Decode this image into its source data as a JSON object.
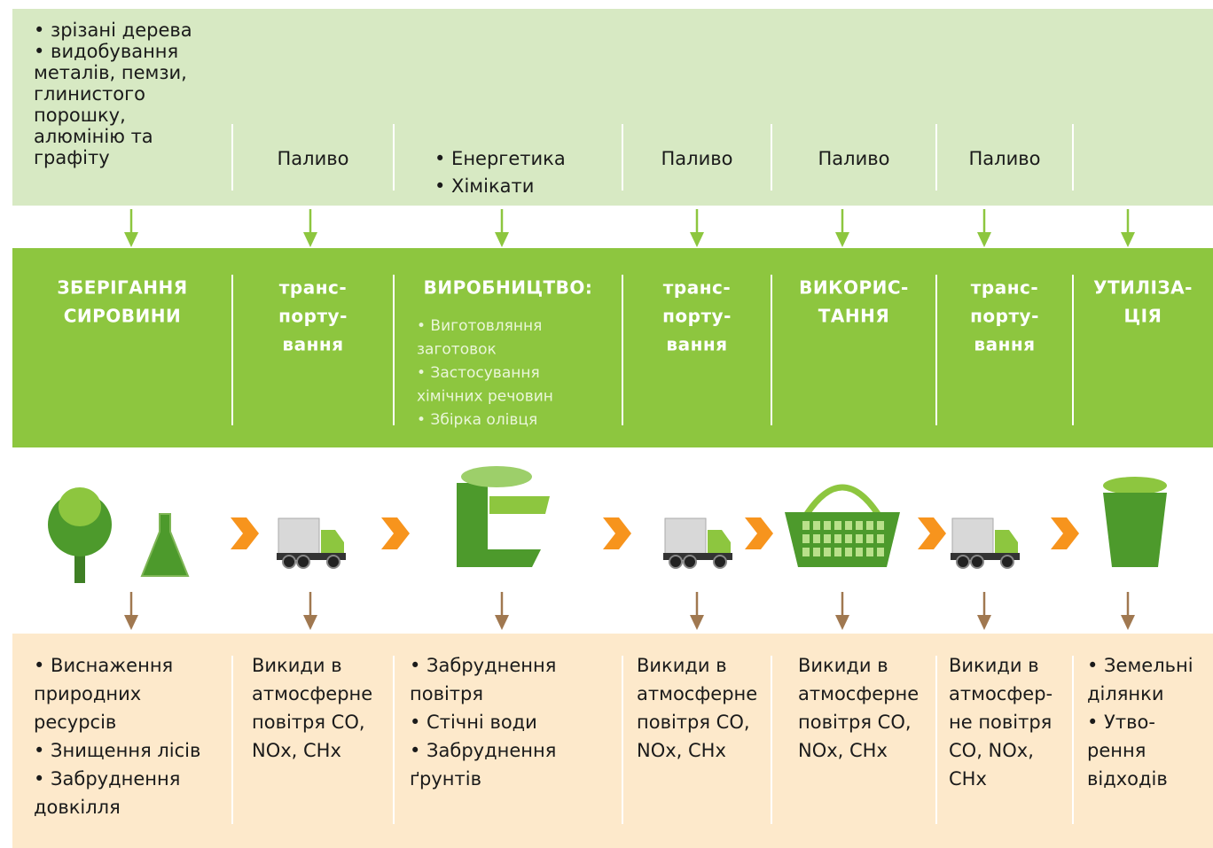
{
  "inputs": [
    {
      "lines": [
        "• зрізані дерева",
        "• видобування",
        "металів, пемзи,",
        "глинистого",
        "порошку,",
        "алюмінію та",
        "графіту"
      ]
    },
    {
      "lines": [
        "Паливо"
      ]
    },
    {
      "lines": [
        "• Енергетика",
        "• Хімікати"
      ]
    },
    {
      "lines": [
        "Паливо"
      ]
    },
    {
      "lines": [
        "Паливо"
      ]
    },
    {
      "lines": [
        "Паливо"
      ]
    },
    {
      "lines": []
    }
  ],
  "stages": [
    {
      "title": [
        "ЗБЕРІГАННЯ",
        "СИРОВИНИ"
      ],
      "items": []
    },
    {
      "title": [
        "транс-",
        "порту-",
        "вання"
      ],
      "items": []
    },
    {
      "title": [
        "ВИРОБНИЦТВО:"
      ],
      "items": [
        "• Виготовляння",
        "заготовок",
        "• Застосування",
        "хімічних речовин",
        "• Збірка олівця"
      ]
    },
    {
      "title": [
        "транс-",
        "порту-",
        "вання"
      ],
      "items": []
    },
    {
      "title": [
        "ВИКОРИС-",
        "ТАННЯ"
      ],
      "items": []
    },
    {
      "title": [
        "транс-",
        "порту-",
        "вання"
      ],
      "items": []
    },
    {
      "title": [
        "УТИЛІЗА-",
        "ЦІЯ"
      ],
      "items": []
    }
  ],
  "outputs": [
    {
      "lines": [
        "• Виснаження",
        "природних",
        "ресурсів",
        "• Знищення лісів",
        "• Забруднення",
        "довкілля"
      ]
    },
    {
      "lines": [
        "Викиди в",
        "атмосферне",
        "повітря CO,",
        "NOx, CHx"
      ]
    },
    {
      "lines": [
        "• Забруднення",
        "повітря",
        "• Стічні води",
        "• Забруднення",
        "ґрунтів"
      ]
    },
    {
      "lines": [
        "Викиди в",
        "атмосферне",
        "повітря CO,",
        "NOx, CHx"
      ]
    },
    {
      "lines": [
        "Викиди в",
        "атмосферне",
        "повітря CO,",
        "NOx, CHx"
      ]
    },
    {
      "lines": [
        "Викиди в",
        "атмосфер-",
        "не повітря",
        "CO, NOx,",
        "CHx"
      ]
    },
    {
      "lines": [
        "• Земельні",
        "ділянки",
        "• Утво-",
        "рення",
        "відходів"
      ]
    }
  ]
}
